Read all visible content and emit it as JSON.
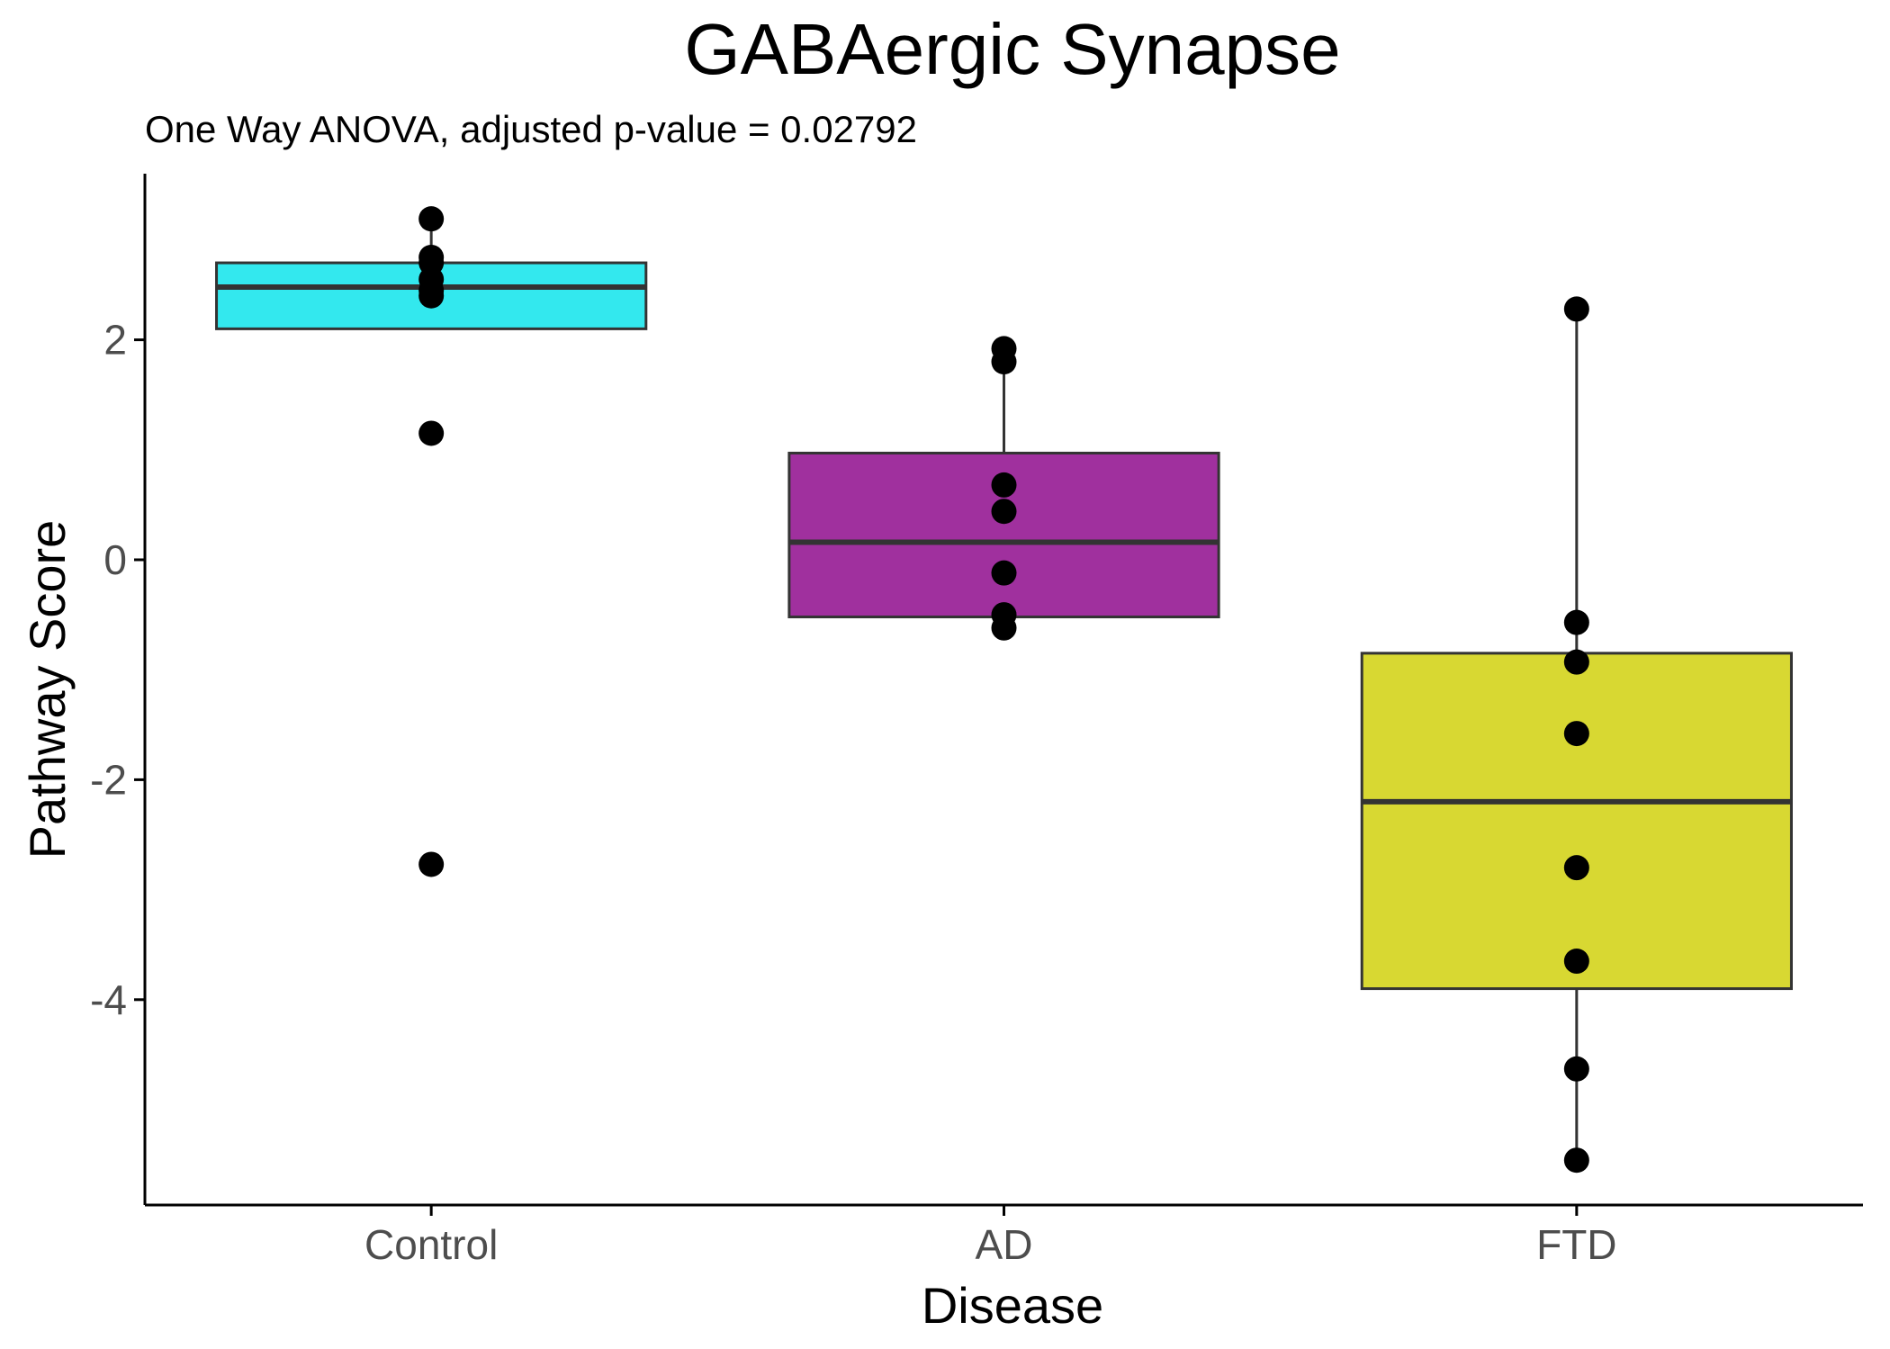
{
  "chart_data": {
    "type": "box",
    "title": "GABAergic Synapse",
    "subtitle": "One Way ANOVA, adjusted p-value = 0.02792",
    "xlabel": "Disease",
    "ylabel": "Pathway Score",
    "ylim": [
      -5.8,
      3.5
    ],
    "yticks": [
      2,
      0,
      -2,
      -4
    ],
    "ytick_labels": [
      "2",
      "0",
      "-2",
      "-4"
    ],
    "grid": false,
    "legend": "none",
    "categories": [
      "Control",
      "AD",
      "FTD"
    ],
    "groups": [
      {
        "name": "Control",
        "color": "#33e8ee",
        "q1": 2.1,
        "median": 2.48,
        "q3": 2.7,
        "whisker_low": 2.1,
        "whisker_high": 3.1,
        "points": [
          3.1,
          2.75,
          2.7,
          2.55,
          2.45,
          2.4,
          1.15,
          -2.77
        ]
      },
      {
        "name": "AD",
        "color": "#a0309e",
        "q1": -0.52,
        "median": 0.16,
        "q3": 0.97,
        "whisker_low": -0.62,
        "whisker_high": 1.92,
        "points": [
          1.92,
          1.8,
          0.68,
          0.44,
          -0.12,
          -0.5,
          -0.62
        ]
      },
      {
        "name": "FTD",
        "color": "#d8d832",
        "q1": -3.9,
        "median": -2.2,
        "q3": -0.85,
        "whisker_low": -5.5,
        "whisker_high": 2.28,
        "points": [
          2.28,
          -0.57,
          -0.93,
          -1.58,
          -2.8,
          -3.65,
          -4.63,
          -5.46
        ]
      }
    ]
  }
}
